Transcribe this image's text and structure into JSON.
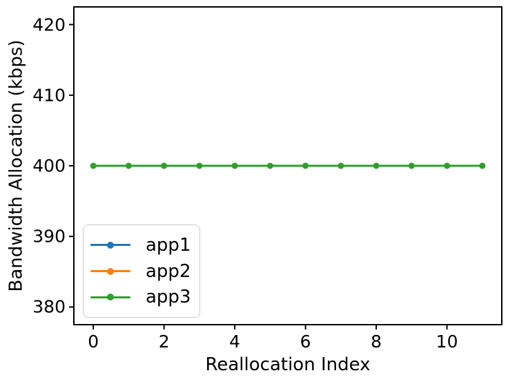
{
  "chart_data": {
    "type": "line",
    "title": "",
    "xlabel": "Reallocation Index",
    "ylabel": "Bandwidth Allocation (kbps)",
    "x": [
      0,
      1,
      2,
      3,
      4,
      5,
      6,
      7,
      8,
      9,
      10,
      11
    ],
    "series": [
      {
        "name": "app1",
        "color": "#1f77b4",
        "values": [
          400,
          400,
          400,
          400,
          400,
          400,
          400,
          400,
          400,
          400,
          400,
          400
        ]
      },
      {
        "name": "app2",
        "color": "#ff7f0e",
        "values": [
          400,
          400,
          400,
          400,
          400,
          400,
          400,
          400,
          400,
          400,
          400,
          400
        ]
      },
      {
        "name": "app3",
        "color": "#2ca02c",
        "values": [
          400,
          400,
          400,
          400,
          400,
          400,
          400,
          400,
          400,
          400,
          400,
          400
        ]
      }
    ],
    "xticks": [
      0,
      2,
      4,
      6,
      8,
      10
    ],
    "yticks": [
      380,
      390,
      400,
      410,
      420
    ],
    "xlim": [
      -0.55,
      11.55
    ],
    "ylim": [
      377.5,
      422.5
    ],
    "grid": false,
    "marker": "o",
    "legend": {
      "position": "lower left"
    },
    "axis_color": "#000000",
    "background_color": "#ffffff"
  }
}
